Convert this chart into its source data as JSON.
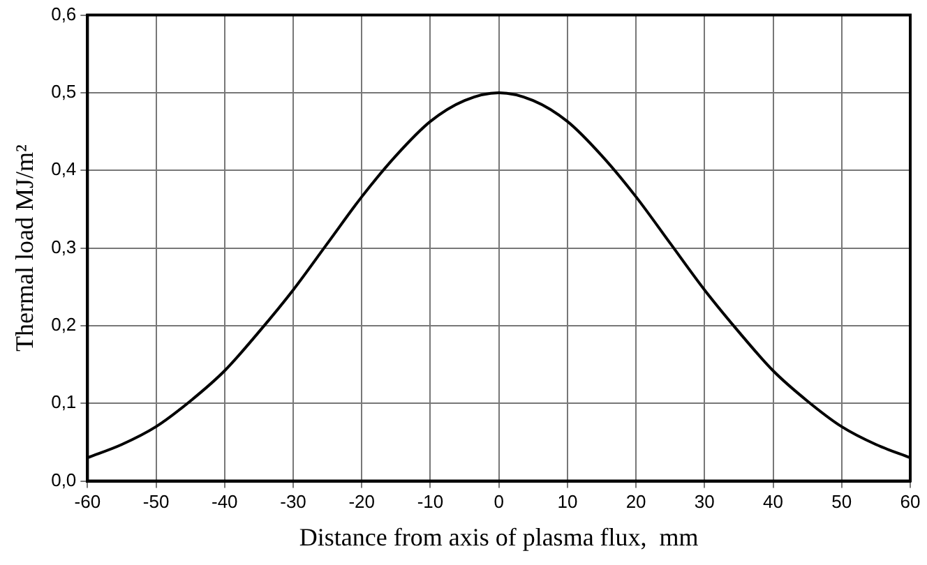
{
  "chart_data": {
    "type": "line",
    "xlabel": "Distance from axis of plasma flux,  mm",
    "ylabel": "Thermal load MJ/m²",
    "x": [
      -60,
      -55,
      -50,
      -45,
      -40,
      -35,
      -30,
      -25,
      -20,
      -15,
      -10,
      -5,
      0,
      5,
      10,
      15,
      20,
      25,
      30,
      35,
      40,
      45,
      50,
      55,
      60
    ],
    "series": [
      {
        "color": "#000000",
        "values": [
          0.03,
          0.047,
          0.07,
          0.103,
          0.142,
          0.192,
          0.246,
          0.306,
          0.366,
          0.419,
          0.463,
          0.49,
          0.5,
          0.49,
          0.463,
          0.419,
          0.366,
          0.306,
          0.246,
          0.192,
          0.142,
          0.103,
          0.07,
          0.047,
          0.03
        ]
      }
    ],
    "xlim": [
      -60,
      60
    ],
    "xticks": [
      -60,
      -50,
      -40,
      -30,
      -20,
      -10,
      0,
      10,
      20,
      30,
      40,
      50,
      60
    ],
    "ylim": [
      0,
      0.6
    ],
    "yticks": [
      {
        "value": 0,
        "label": "0,0"
      },
      {
        "value": 0.1,
        "label": "0,1"
      },
      {
        "value": 0.2,
        "label": "0,2"
      },
      {
        "value": 0.3,
        "label": "0,3"
      },
      {
        "value": 0.4,
        "label": "0,4"
      },
      {
        "value": 0.5,
        "label": "0,5"
      },
      {
        "value": 0.6,
        "label": "0,6"
      }
    ],
    "grid": true,
    "marker": "none",
    "line_style": "solid",
    "legend": false
  }
}
